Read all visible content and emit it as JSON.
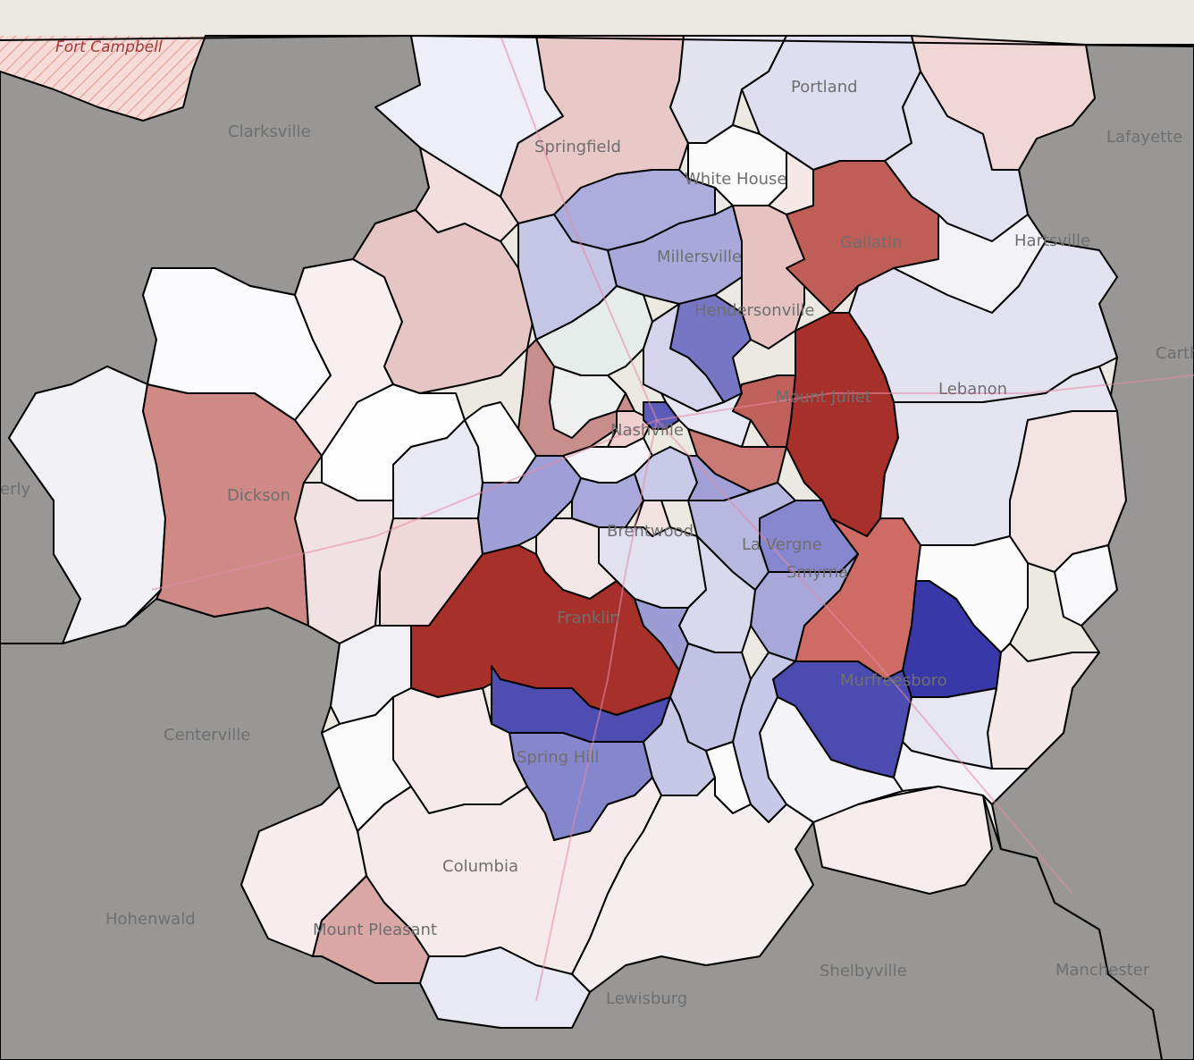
{
  "map": {
    "colors": {
      "strong_red": "#a8302a",
      "mid_red": "#c97673",
      "light_red": "#e6c3c2",
      "pale_red": "#f5e6e5",
      "white": "#fafafa",
      "pale_blue": "#e4e4f1",
      "light_blue": "#b9b9e0",
      "mid_blue": "#8c8cd0",
      "strong_blue": "#3434a6",
      "outside": "#808080"
    },
    "place_labels": {
      "fort_campbell": "Fort Campbell",
      "clarksville": "Clarksville",
      "portland": "Portland",
      "lafayette": "Lafayette",
      "springfield": "Springfield",
      "white_house": "White House",
      "gallatin": "Gallatin",
      "hartsville": "Hartsville",
      "millersville": "Millersville",
      "hendersonville": "Hendersonville",
      "carthage": "Carth",
      "lebanon": "Lebanon",
      "mount_juliet": "Mount Juliet",
      "nashville": "Nashville",
      "waverly": "erly",
      "dickson": "Dickson",
      "brentwood": "Brentwood",
      "la_vergne": "La Vergne",
      "smyrna": "Smyrna",
      "franklin": "Franklin",
      "murfreesboro": "Murfreesboro",
      "centerville": "Centerville",
      "spring_hill": "Spring Hill",
      "columbia": "Columbia",
      "hohenwald": "Hohenwald",
      "mount_pleasant": "Mount Pleasant",
      "lewisburg": "Lewisburg",
      "shelbyville": "Shelbyville",
      "manchester": "Manchester"
    }
  }
}
